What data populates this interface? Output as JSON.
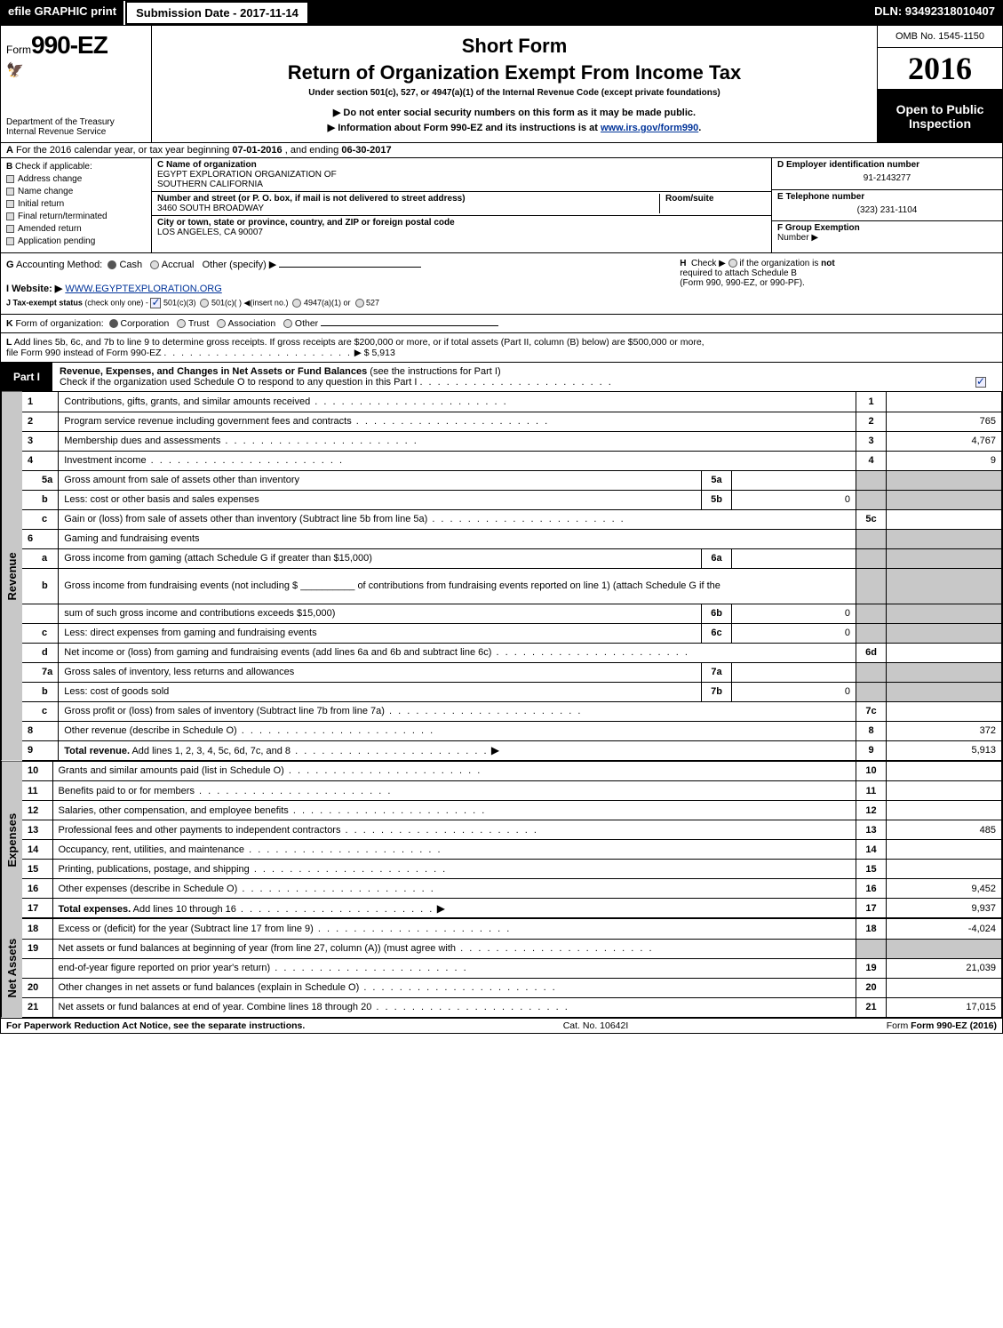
{
  "topbar": {
    "efile": "efile GRAPHIC print",
    "submission_label": "Submission Date - 2017-11-14",
    "dln": "DLN: 93492318010407"
  },
  "header": {
    "form_prefix": "Form",
    "form_number": "990-EZ",
    "dept1": "Department of the Treasury",
    "dept2": "Internal Revenue Service",
    "short_form": "Short Form",
    "title": "Return of Organization Exempt From Income Tax",
    "under": "Under section 501(c), 527, or 4947(a)(1) of the Internal Revenue Code (except private foundations)",
    "note1": "▶ Do not enter social security numbers on this form as it may be made public.",
    "note2_pre": "▶ Information about Form 990-EZ and its instructions is at ",
    "note2_link": "www.irs.gov/form990",
    "note2_post": ".",
    "omb": "OMB No. 1545-1150",
    "year": "2016",
    "open": "Open to Public Inspection"
  },
  "section_a": {
    "label": "A",
    "text_pre": "For the 2016 calendar year, or tax year beginning ",
    "begin": "07-01-2016",
    "mid": ", and ending ",
    "end": "06-30-2017"
  },
  "section_b": {
    "label": "B",
    "header": "Check if applicable:",
    "items": [
      "Address change",
      "Name change",
      "Initial return",
      "Final return/terminated",
      "Amended return",
      "Application pending"
    ]
  },
  "section_c": {
    "name_label": "C Name of organization",
    "name1": "EGYPT EXPLORATION ORGANIZATION OF",
    "name2": "SOUTHERN CALIFORNIA",
    "street_label": "Number and street (or P. O. box, if mail is not delivered to street address)",
    "street": "3460 SOUTH BROADWAY",
    "room_label": "Room/suite",
    "city_label": "City or town, state or province, country, and ZIP or foreign postal code",
    "city": "LOS ANGELES, CA  90007"
  },
  "section_d": {
    "label": "D Employer identification number",
    "value": "91-2143277"
  },
  "section_e": {
    "label": "E Telephone number",
    "value": "(323) 231-1104"
  },
  "section_f": {
    "label": "F Group Exemption",
    "label2": "Number ▶",
    "value": ""
  },
  "line_g": {
    "label": "G",
    "text": "Accounting Method:",
    "opt_cash": "Cash",
    "opt_accrual": "Accrual",
    "opt_other": "Other (specify) ▶"
  },
  "line_h": {
    "label": "H",
    "text1": "Check ▶",
    "text2": "if the organization is",
    "not": "not",
    "text3": "required to attach Schedule B",
    "text4": "(Form 990, 990-EZ, or 990-PF)."
  },
  "line_i": {
    "label": "I Website: ▶",
    "value": "WWW.EGYPTEXPLORATION.ORG"
  },
  "line_j": {
    "label": "J Tax-exempt status",
    "sub": "(check only one) -",
    "opt1": "501(c)(3)",
    "opt2": "501(c)(  ) ◀(insert no.)",
    "opt3": "4947(a)(1) or",
    "opt4": "527"
  },
  "line_k": {
    "label": "K",
    "text": "Form of organization:",
    "opts": [
      "Corporation",
      "Trust",
      "Association",
      "Other"
    ]
  },
  "line_l": {
    "label": "L",
    "text1": "Add lines 5b, 6c, and 7b to line 9 to determine gross receipts. If gross receipts are $200,000 or more, or if total assets (Part II, column (B) below) are $500,000 or more,",
    "text2": "file Form 990 instead of Form 990-EZ",
    "arrow_val": "▶ $ 5,913"
  },
  "part1": {
    "label": "Part I",
    "title_bold": "Revenue, Expenses, and Changes in Net Assets or Fund Balances",
    "title_rest": " (see the instructions for Part I)",
    "check_text": "Check if the organization used Schedule O to respond to any question in this Part I",
    "checked": true
  },
  "sections": {
    "revenue": "Revenue",
    "expenses": "Expenses",
    "netassets": "Net Assets"
  },
  "rows": [
    {
      "sec": "rev",
      "n": "1",
      "d": "Contributions, gifts, grants, and similar amounts received",
      "rnum": "1",
      "rval": ""
    },
    {
      "sec": "rev",
      "n": "2",
      "d": "Program service revenue including government fees and contracts",
      "rnum": "2",
      "rval": "765"
    },
    {
      "sec": "rev",
      "n": "3",
      "d": "Membership dues and assessments",
      "rnum": "3",
      "rval": "4,767"
    },
    {
      "sec": "rev",
      "n": "4",
      "d": "Investment income",
      "rnum": "4",
      "rval": "9"
    },
    {
      "sec": "rev",
      "n": "5a",
      "sub": true,
      "d": "Gross amount from sale of assets other than inventory",
      "mnum": "5a",
      "mval": "",
      "shade_r": true
    },
    {
      "sec": "rev",
      "n": "b",
      "sub": true,
      "d": "Less: cost or other basis and sales expenses",
      "mnum": "5b",
      "mval": "0",
      "shade_r": true
    },
    {
      "sec": "rev",
      "n": "c",
      "sub": true,
      "d": "Gain or (loss) from sale of assets other than inventory (Subtract line 5b from line 5a)",
      "rnum": "5c",
      "rval": ""
    },
    {
      "sec": "rev",
      "n": "6",
      "d": "Gaming and fundraising events",
      "shade_r": true,
      "no_mid": true
    },
    {
      "sec": "rev",
      "n": "a",
      "sub": true,
      "d": "Gross income from gaming (attach Schedule G if greater than $15,000)",
      "mnum": "6a",
      "mval": "",
      "shade_r": true
    },
    {
      "sec": "rev",
      "n": "b",
      "sub": true,
      "d": "Gross income from fundraising events (not including $ __________ of contributions from fundraising events reported on line 1) (attach Schedule G if the",
      "no_mid": true,
      "shade_r": true,
      "tall": true
    },
    {
      "sec": "rev",
      "n": "",
      "sub": true,
      "d": "sum of such gross income and contributions exceeds $15,000)",
      "mnum": "6b",
      "mval": "0",
      "shade_r": true
    },
    {
      "sec": "rev",
      "n": "c",
      "sub": true,
      "d": "Less: direct expenses from gaming and fundraising events",
      "mnum": "6c",
      "mval": "0",
      "shade_r": true
    },
    {
      "sec": "rev",
      "n": "d",
      "sub": true,
      "d": "Net income or (loss) from gaming and fundraising events (add lines 6a and 6b and subtract line 6c)",
      "rnum": "6d",
      "rval": ""
    },
    {
      "sec": "rev",
      "n": "7a",
      "sub": true,
      "d": "Gross sales of inventory, less returns and allowances",
      "mnum": "7a",
      "mval": "",
      "shade_r": true
    },
    {
      "sec": "rev",
      "n": "b",
      "sub": true,
      "d": "Less: cost of goods sold",
      "mnum": "7b",
      "mval": "0",
      "shade_r": true
    },
    {
      "sec": "rev",
      "n": "c",
      "sub": true,
      "d": "Gross profit or (loss) from sales of inventory (Subtract line 7b from line 7a)",
      "rnum": "7c",
      "rval": ""
    },
    {
      "sec": "rev",
      "n": "8",
      "d": "Other revenue (describe in Schedule O)",
      "rnum": "8",
      "rval": "372"
    },
    {
      "sec": "rev",
      "n": "9",
      "d_bold": "Total revenue.",
      "d": " Add lines 1, 2, 3, 4, 5c, 6d, 7c, and 8",
      "rnum": "9",
      "rval": "5,913",
      "arrow": true
    },
    {
      "sec": "exp",
      "n": "10",
      "d": "Grants and similar amounts paid (list in Schedule O)",
      "rnum": "10",
      "rval": ""
    },
    {
      "sec": "exp",
      "n": "11",
      "d": "Benefits paid to or for members",
      "rnum": "11",
      "rval": ""
    },
    {
      "sec": "exp",
      "n": "12",
      "d": "Salaries, other compensation, and employee benefits",
      "rnum": "12",
      "rval": ""
    },
    {
      "sec": "exp",
      "n": "13",
      "d": "Professional fees and other payments to independent contractors",
      "rnum": "13",
      "rval": "485"
    },
    {
      "sec": "exp",
      "n": "14",
      "d": "Occupancy, rent, utilities, and maintenance",
      "rnum": "14",
      "rval": ""
    },
    {
      "sec": "exp",
      "n": "15",
      "d": "Printing, publications, postage, and shipping",
      "rnum": "15",
      "rval": ""
    },
    {
      "sec": "exp",
      "n": "16",
      "d": "Other expenses (describe in Schedule O)",
      "rnum": "16",
      "rval": "9,452"
    },
    {
      "sec": "exp",
      "n": "17",
      "d_bold": "Total expenses.",
      "d": " Add lines 10 through 16",
      "rnum": "17",
      "rval": "9,937",
      "arrow": true
    },
    {
      "sec": "na",
      "n": "18",
      "d": "Excess or (deficit) for the year (Subtract line 17 from line 9)",
      "rnum": "18",
      "rval": "-4,024"
    },
    {
      "sec": "na",
      "n": "19",
      "d": "Net assets or fund balances at beginning of year (from line 27, column (A)) (must agree with",
      "no_r": true,
      "shade_r": true
    },
    {
      "sec": "na",
      "n": "",
      "d": "end-of-year figure reported on prior year's return)",
      "rnum": "19",
      "rval": "21,039"
    },
    {
      "sec": "na",
      "n": "20",
      "d": "Other changes in net assets or fund balances (explain in Schedule O)",
      "rnum": "20",
      "rval": ""
    },
    {
      "sec": "na",
      "n": "21",
      "d": "Net assets or fund balances at end of year. Combine lines 18 through 20",
      "rnum": "21",
      "rval": "17,015"
    }
  ],
  "footer": {
    "left": "For Paperwork Reduction Act Notice, see the separate instructions.",
    "cat": "Cat. No. 10642I",
    "form": "Form 990-EZ (2016)"
  },
  "colors": {
    "shade": "#c8c8c8",
    "link": "#003399"
  }
}
